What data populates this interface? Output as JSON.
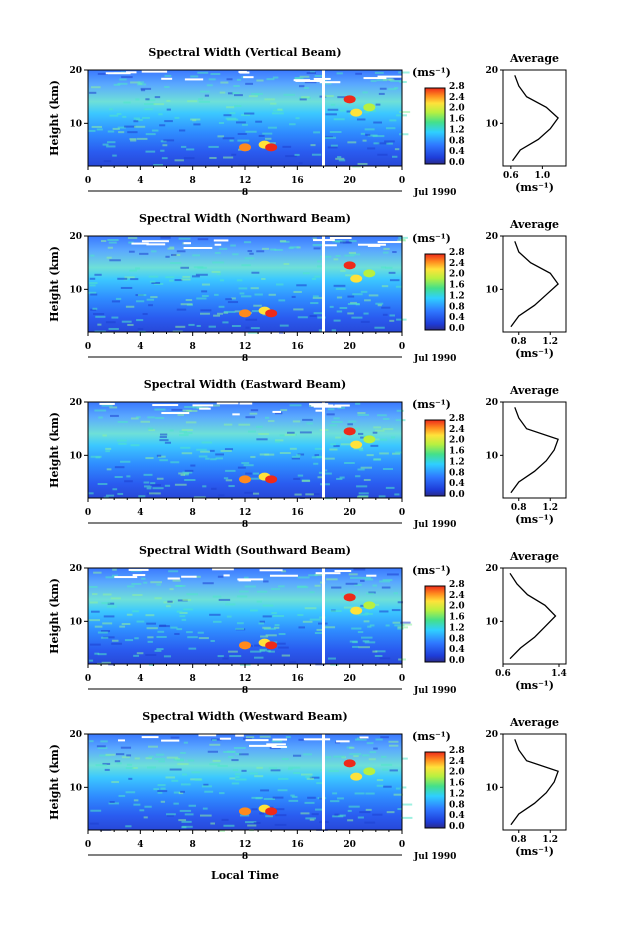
{
  "figure": {
    "xlabel": "Local Time",
    "date_label": "Jul 1990",
    "day_label": "8",
    "ylabel": "Height (km)",
    "colorbar_unit": "(ms⁻¹)",
    "colorbar_ticks": [
      "0.0",
      "0.4",
      "0.8",
      "1.2",
      "1.6",
      "2.0",
      "2.4",
      "2.8"
    ],
    "avg_title": "Average",
    "avg_xlabel": "(ms⁻¹)",
    "x_ticks": [
      "0",
      "4",
      "8",
      "12",
      "16",
      "20",
      "0"
    ],
    "y_ticks": [
      "20",
      "10"
    ]
  },
  "chart_data": [
    {
      "type": "heatmap",
      "title": "Spectral Width (Vertical Beam)",
      "x_range_hours": [
        0,
        24
      ],
      "y_range_km": [
        2,
        20
      ],
      "data_gap_hour": 18,
      "average_profile": {
        "xticks": [
          "0.6",
          "1.0"
        ],
        "xlim": [
          0.5,
          1.3
        ],
        "height_km": [
          3,
          5,
          7,
          9,
          11,
          13,
          15,
          17,
          19
        ],
        "width_ms": [
          0.62,
          0.72,
          0.95,
          1.1,
          1.2,
          1.05,
          0.8,
          0.7,
          0.65
        ]
      }
    },
    {
      "type": "heatmap",
      "title": "Spectral Width (Northward Beam)",
      "x_range_hours": [
        0,
        24
      ],
      "y_range_km": [
        2,
        20
      ],
      "data_gap_hour": 18,
      "average_profile": {
        "xticks": [
          "0.8",
          "1.2"
        ],
        "xlim": [
          0.6,
          1.4
        ],
        "height_km": [
          3,
          5,
          7,
          9,
          11,
          13,
          15,
          17,
          19
        ],
        "width_ms": [
          0.7,
          0.8,
          1.0,
          1.15,
          1.3,
          1.2,
          0.95,
          0.8,
          0.75
        ]
      }
    },
    {
      "type": "heatmap",
      "title": "Spectral Width (Eastward Beam)",
      "x_range_hours": [
        0,
        24
      ],
      "y_range_km": [
        2,
        20
      ],
      "data_gap_hour": 18,
      "average_profile": {
        "xticks": [
          "0.8",
          "1.2"
        ],
        "xlim": [
          0.6,
          1.4
        ],
        "height_km": [
          3,
          5,
          7,
          9,
          11,
          13,
          15,
          17,
          19
        ],
        "width_ms": [
          0.7,
          0.8,
          1.0,
          1.15,
          1.25,
          1.3,
          0.9,
          0.8,
          0.75
        ]
      }
    },
    {
      "type": "heatmap",
      "title": "Spectral Width (Southward Beam)",
      "x_range_hours": [
        0,
        24
      ],
      "y_range_km": [
        2,
        20
      ],
      "data_gap_hour": 18,
      "average_profile": {
        "xticks": [
          "0.6",
          "1.4"
        ],
        "xlim": [
          0.6,
          1.5
        ],
        "height_km": [
          3,
          5,
          7,
          9,
          11,
          13,
          15,
          17,
          19
        ],
        "width_ms": [
          0.7,
          0.85,
          1.05,
          1.2,
          1.35,
          1.2,
          0.95,
          0.8,
          0.7
        ]
      }
    },
    {
      "type": "heatmap",
      "title": "Spectral Width (Westward Beam)",
      "x_range_hours": [
        0,
        24
      ],
      "y_range_km": [
        2,
        20
      ],
      "data_gap_hour": 18,
      "average_profile": {
        "xticks": [
          "0.8",
          "1.2"
        ],
        "xlim": [
          0.6,
          1.4
        ],
        "height_km": [
          3,
          5,
          7,
          9,
          11,
          13,
          15,
          17,
          19
        ],
        "width_ms": [
          0.7,
          0.8,
          1.0,
          1.15,
          1.25,
          1.3,
          0.9,
          0.8,
          0.75
        ]
      }
    }
  ]
}
